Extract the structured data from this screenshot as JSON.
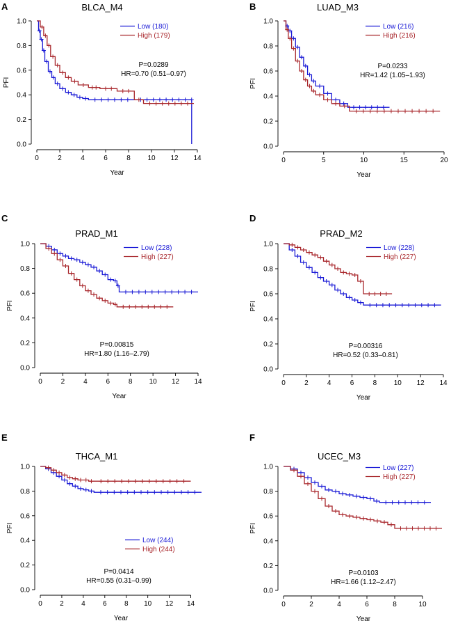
{
  "colors": {
    "low": "#1a1ad6",
    "high": "#a8262b"
  },
  "chart_data": [
    {
      "type": "line",
      "panel": "A",
      "title": "BLCA_M4",
      "xlabel": "Year",
      "ylabel": "PFI",
      "xlim": [
        0,
        14
      ],
      "ylim": [
        0,
        1
      ],
      "xticks": [
        0,
        2,
        4,
        6,
        8,
        10,
        12,
        14
      ],
      "yticks": [
        0.0,
        0.2,
        0.4,
        0.6,
        0.8,
        1.0
      ],
      "ytick_labels": [
        "0.0",
        "0.2",
        "0.4",
        "0.6",
        "0.8",
        "1.0"
      ],
      "legend": [
        "Low (180)",
        "High (179)"
      ],
      "p_text": "P=0.0289",
      "hr_text": "HR=0.70 (0.51–0.97)",
      "series": [
        {
          "name": "Low (180)",
          "x": [
            0,
            0.15,
            0.3,
            0.5,
            0.7,
            1.0,
            1.3,
            1.6,
            2.0,
            2.5,
            3.0,
            3.5,
            4.0,
            4.5,
            8.5,
            13.5,
            13.5
          ],
          "y": [
            1.0,
            0.92,
            0.85,
            0.76,
            0.67,
            0.59,
            0.54,
            0.49,
            0.45,
            0.42,
            0.4,
            0.38,
            0.37,
            0.36,
            0.36,
            0.36,
            0.0
          ]
        },
        {
          "name": "High (179)",
          "x": [
            0,
            0.3,
            0.6,
            0.9,
            1.2,
            1.6,
            2.0,
            2.5,
            3.0,
            3.6,
            4.5,
            5.5,
            7.0,
            8.5,
            9.3,
            13.7
          ],
          "y": [
            1.0,
            0.95,
            0.88,
            0.8,
            0.71,
            0.64,
            0.58,
            0.54,
            0.51,
            0.48,
            0.46,
            0.45,
            0.43,
            0.36,
            0.33,
            0.33
          ]
        }
      ]
    },
    {
      "type": "line",
      "panel": "B",
      "title": "LUAD_M3",
      "xlabel": "Year",
      "ylabel": "PFI",
      "xlim": [
        0,
        20
      ],
      "ylim": [
        0,
        1
      ],
      "xticks": [
        0,
        5,
        10,
        15,
        20
      ],
      "yticks": [
        0.0,
        0.2,
        0.4,
        0.6,
        0.8,
        1.0
      ],
      "ytick_labels": [
        "0.0",
        "0.2",
        "0.4",
        "0.6",
        "0.8",
        "1.0"
      ],
      "legend": [
        "Low (216)",
        "High (216)"
      ],
      "p_text": "P=0.0233",
      "hr_text": "HR=1.42 (1.05–1.93)",
      "series": [
        {
          "name": "Low (216)",
          "x": [
            0,
            0.3,
            0.6,
            1.0,
            1.5,
            2.0,
            2.5,
            3.0,
            3.5,
            4.0,
            5.0,
            6.0,
            7.0,
            8.0,
            13.2
          ],
          "y": [
            1.0,
            0.96,
            0.92,
            0.86,
            0.79,
            0.71,
            0.64,
            0.57,
            0.52,
            0.48,
            0.42,
            0.37,
            0.34,
            0.31,
            0.31
          ]
        },
        {
          "name": "High (216)",
          "x": [
            0,
            0.3,
            0.6,
            1.0,
            1.5,
            2.0,
            2.5,
            3.0,
            3.5,
            4.0,
            5.0,
            6.0,
            7.0,
            8.2,
            19.5
          ],
          "y": [
            1.0,
            0.93,
            0.86,
            0.78,
            0.68,
            0.6,
            0.53,
            0.48,
            0.44,
            0.41,
            0.37,
            0.34,
            0.32,
            0.28,
            0.28
          ]
        }
      ]
    },
    {
      "type": "line",
      "panel": "C",
      "title": "PRAD_M1",
      "xlabel": "Year",
      "ylabel": "PFI",
      "xlim": [
        0,
        14
      ],
      "ylim": [
        0,
        1
      ],
      "xticks": [
        0,
        2,
        4,
        6,
        8,
        10,
        12,
        14
      ],
      "yticks": [
        0.0,
        0.2,
        0.4,
        0.6,
        0.8,
        1.0
      ],
      "ytick_labels": [
        "0.0",
        "0.2",
        "0.4",
        "0.6",
        "0.8",
        "1.0"
      ],
      "legend": [
        "Low (228)",
        "High (227)"
      ],
      "p_text": "P=0.00815",
      "hr_text": "HR=1.80 (1.16–2.79)",
      "series": [
        {
          "name": "Low (228)",
          "x": [
            0,
            0.5,
            1.0,
            1.5,
            2.0,
            2.5,
            3.0,
            3.5,
            4.0,
            4.5,
            5.0,
            5.5,
            6.0,
            6.5,
            6.8,
            7.0,
            14.0
          ],
          "y": [
            1.0,
            0.98,
            0.95,
            0.92,
            0.9,
            0.88,
            0.87,
            0.85,
            0.83,
            0.81,
            0.78,
            0.75,
            0.71,
            0.7,
            0.66,
            0.61,
            0.61
          ]
        },
        {
          "name": "High (227)",
          "x": [
            0,
            0.5,
            1.0,
            1.5,
            2.0,
            2.5,
            3.0,
            3.5,
            4.0,
            4.5,
            5.0,
            5.5,
            6.0,
            6.5,
            6.8,
            11.8
          ],
          "y": [
            1.0,
            0.96,
            0.92,
            0.87,
            0.82,
            0.76,
            0.71,
            0.66,
            0.62,
            0.59,
            0.56,
            0.54,
            0.52,
            0.51,
            0.49,
            0.49
          ]
        }
      ]
    },
    {
      "type": "line",
      "panel": "D",
      "title": "PRAD_M2",
      "xlabel": "Year",
      "ylabel": "PFI",
      "xlim": [
        0,
        14
      ],
      "ylim": [
        0,
        1
      ],
      "xticks": [
        0,
        2,
        4,
        6,
        8,
        10,
        12,
        14
      ],
      "yticks": [
        0.0,
        0.2,
        0.4,
        0.6,
        0.8,
        1.0
      ],
      "ytick_labels": [
        "0.0",
        "0.2",
        "0.4",
        "0.6",
        "0.8",
        "1.0"
      ],
      "legend": [
        "Low (228)",
        "High (227)"
      ],
      "p_text": "P=0.00316",
      "hr_text": "HR=0.52 (0.33–0.81)",
      "series": [
        {
          "name": "Low (228)",
          "x": [
            0,
            0.5,
            1.0,
            1.5,
            2.0,
            2.5,
            3.0,
            3.5,
            4.0,
            4.5,
            5.0,
            5.5,
            6.0,
            6.5,
            7.0,
            13.8
          ],
          "y": [
            1.0,
            0.95,
            0.9,
            0.85,
            0.81,
            0.77,
            0.73,
            0.7,
            0.67,
            0.63,
            0.6,
            0.57,
            0.55,
            0.53,
            0.51,
            0.51
          ]
        },
        {
          "name": "High (227)",
          "x": [
            0,
            0.5,
            1.0,
            1.5,
            2.0,
            2.5,
            3.0,
            3.5,
            4.0,
            4.5,
            5.0,
            5.5,
            6.0,
            6.5,
            7.0,
            9.5
          ],
          "y": [
            1.0,
            0.99,
            0.97,
            0.95,
            0.93,
            0.91,
            0.89,
            0.86,
            0.83,
            0.8,
            0.77,
            0.76,
            0.75,
            0.7,
            0.6,
            0.6
          ]
        }
      ]
    },
    {
      "type": "line",
      "panel": "E",
      "title": "THCA_M1",
      "xlabel": "Year",
      "ylabel": "PFI",
      "xlim": [
        0,
        15
      ],
      "ylim": [
        0,
        1
      ],
      "xticks": [
        0,
        2,
        4,
        6,
        8,
        10,
        12,
        14
      ],
      "yticks": [
        0.0,
        0.2,
        0.4,
        0.6,
        0.8,
        1.0
      ],
      "ytick_labels": [
        "0.0",
        "0.2",
        "0.4",
        "0.6",
        "0.8",
        "1.0"
      ],
      "legend": [
        "Low (244)",
        "High (244)"
      ],
      "p_text": "P=0.0414",
      "hr_text": "HR=0.55 (0.31–0.99)",
      "series": [
        {
          "name": "Low (244)",
          "x": [
            0,
            0.5,
            1.0,
            1.5,
            2.0,
            2.5,
            3.0,
            3.5,
            4.0,
            4.5,
            5.0,
            15.0
          ],
          "y": [
            1.0,
            0.98,
            0.95,
            0.92,
            0.89,
            0.86,
            0.84,
            0.82,
            0.81,
            0.8,
            0.79,
            0.79
          ]
        },
        {
          "name": "High (244)",
          "x": [
            0,
            0.5,
            1.0,
            1.5,
            2.0,
            2.5,
            3.0,
            3.5,
            4.0,
            4.5,
            5.0,
            14.0
          ],
          "y": [
            1.0,
            0.99,
            0.97,
            0.95,
            0.93,
            0.91,
            0.9,
            0.89,
            0.89,
            0.88,
            0.88,
            0.88
          ]
        }
      ]
    },
    {
      "type": "line",
      "panel": "F",
      "title": "UCEC_M3",
      "xlabel": "Year",
      "ylabel": "PFI",
      "xlim": [
        0,
        11.5
      ],
      "ylim": [
        0,
        1
      ],
      "xticks": [
        0,
        2,
        4,
        6,
        8,
        10
      ],
      "yticks": [
        0.0,
        0.2,
        0.4,
        0.6,
        0.8,
        1.0
      ],
      "ytick_labels": [
        "0.0",
        "0.2",
        "0.4",
        "0.6",
        "0.8",
        "1.0"
      ],
      "legend": [
        "Low (227)",
        "High (227)"
      ],
      "p_text": "P=0.0103",
      "hr_text": "HR=1.66 (1.12–2.47)",
      "series": [
        {
          "name": "Low (227)",
          "x": [
            0,
            0.5,
            1.0,
            1.5,
            2.0,
            2.5,
            3.0,
            3.5,
            4.0,
            4.5,
            5.0,
            5.5,
            6.0,
            6.5,
            6.9,
            10.6
          ],
          "y": [
            1.0,
            0.98,
            0.95,
            0.91,
            0.87,
            0.84,
            0.81,
            0.8,
            0.78,
            0.77,
            0.76,
            0.75,
            0.74,
            0.72,
            0.71,
            0.71
          ]
        },
        {
          "name": "High (227)",
          "x": [
            0,
            0.5,
            1.0,
            1.5,
            2.0,
            2.5,
            3.0,
            3.5,
            4.0,
            4.5,
            5.0,
            5.5,
            6.0,
            6.5,
            7.0,
            7.5,
            8.0,
            11.4
          ],
          "y": [
            1.0,
            0.97,
            0.92,
            0.86,
            0.8,
            0.74,
            0.68,
            0.64,
            0.61,
            0.6,
            0.59,
            0.58,
            0.57,
            0.56,
            0.55,
            0.53,
            0.5,
            0.5
          ]
        }
      ]
    }
  ]
}
